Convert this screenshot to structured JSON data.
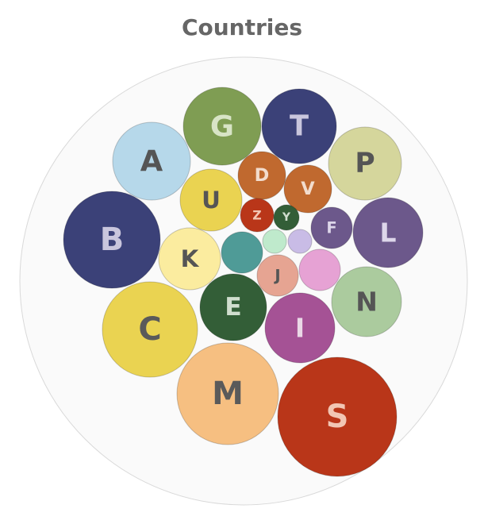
{
  "chart_data": {
    "type": "bubble",
    "title": "Countries",
    "colors": {
      "outer_fill": "#fafafa",
      "outer_stroke": "#d9d9d9"
    },
    "items": [
      {
        "label": "S",
        "relative_size": 75,
        "color": "#b93619",
        "label_color": "#f2c6b4"
      },
      {
        "label": "M",
        "relative_size": 64,
        "color": "#f6bf81",
        "label_color": "#5a5a5a"
      },
      {
        "label": "B",
        "relative_size": 61,
        "color": "#3b4178",
        "label_color": "#c9c6dd"
      },
      {
        "label": "C",
        "relative_size": 60,
        "color": "#ead351",
        "label_color": "#5a5a5a"
      },
      {
        "label": "G",
        "relative_size": 49,
        "color": "#7f9d53",
        "label_color": "#d8e4c6"
      },
      {
        "label": "A",
        "relative_size": 49,
        "color": "#b6d8ea",
        "label_color": "#555555"
      },
      {
        "label": "T",
        "relative_size": 47,
        "color": "#3b4178",
        "label_color": "#c9c6dd"
      },
      {
        "label": "P",
        "relative_size": 46,
        "color": "#d5d69c",
        "label_color": "#555555"
      },
      {
        "label": "L",
        "relative_size": 44,
        "color": "#6c588b",
        "label_color": "#ddd6ea"
      },
      {
        "label": "N",
        "relative_size": 44,
        "color": "#abcb9e",
        "label_color": "#555555"
      },
      {
        "label": "I",
        "relative_size": 44,
        "color": "#a55295",
        "label_color": "#ead8e6"
      },
      {
        "label": "E",
        "relative_size": 42,
        "color": "#335e37",
        "label_color": "#d0dece"
      },
      {
        "label": "K",
        "relative_size": 39,
        "color": "#fbec9f",
        "label_color": "#555555"
      },
      {
        "label": "U",
        "relative_size": 39,
        "color": "#ead351",
        "label_color": "#555555"
      },
      {
        "label": "D",
        "relative_size": 30,
        "color": "#c0692f",
        "label_color": "#f2dccd"
      },
      {
        "label": "V",
        "relative_size": 30,
        "color": "#c0692f",
        "label_color": "#f2dccd"
      },
      {
        "label": "F",
        "relative_size": 26,
        "color": "#6c588b",
        "label_color": "#ddd6ea"
      },
      {
        "label": "",
        "relative_size": 26,
        "color": "#4f9b97",
        "label_color": "#ffffff"
      },
      {
        "label": "",
        "relative_size": 26,
        "color": "#e6a2d4",
        "label_color": "#ffffff"
      },
      {
        "label": "J",
        "relative_size": 26,
        "color": "#e6a492",
        "label_color": "#555555"
      },
      {
        "label": "Z",
        "relative_size": 21,
        "color": "#b93619",
        "label_color": "#f2c6b4"
      },
      {
        "label": "Y",
        "relative_size": 16,
        "color": "#335e37",
        "label_color": "#d0dece"
      },
      {
        "label": "",
        "relative_size": 15,
        "color": "#bfeacc",
        "label_color": "#ffffff"
      },
      {
        "label": "",
        "relative_size": 15,
        "color": "#c9bce6",
        "label_color": "#ffffff"
      }
    ]
  }
}
